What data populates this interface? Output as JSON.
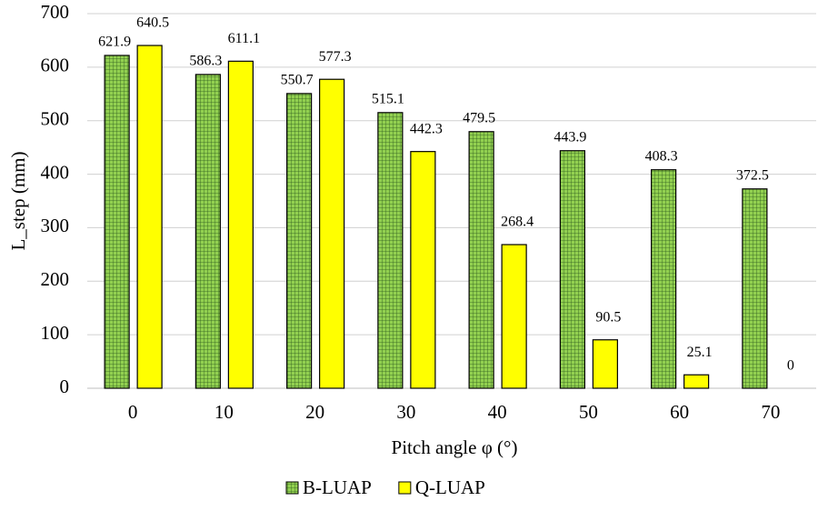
{
  "chart_data": {
    "type": "bar",
    "x_label": "Pitch angle φ (°)",
    "y_label": "L_step (mm)",
    "categories": [
      "0",
      "10",
      "20",
      "30",
      "40",
      "50",
      "60",
      "70"
    ],
    "series": [
      {
        "name": "B-LUAP",
        "color": "#92d050",
        "values": [
          621.9,
          586.3,
          550.7,
          515.1,
          479.5,
          443.9,
          408.3,
          372.5
        ]
      },
      {
        "name": "Q-LUAP",
        "color": "#ffff00",
        "values": [
          640.5,
          611.1,
          577.3,
          442.3,
          268.4,
          90.5,
          25.1,
          0
        ]
      }
    ],
    "ylim": [
      0,
      700
    ],
    "yticks": [
      0,
      100,
      200,
      300,
      400,
      500,
      600,
      700
    ],
    "grid": true,
    "legend": "bottom"
  }
}
